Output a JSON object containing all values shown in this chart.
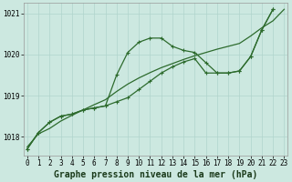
{
  "title": "Graphe pression niveau de la mer (hPa)",
  "hours": [
    0,
    1,
    2,
    3,
    4,
    5,
    6,
    7,
    8,
    9,
    10,
    11,
    12,
    13,
    14,
    15,
    16,
    17,
    18,
    19,
    20,
    21,
    22,
    23
  ],
  "curve1": [
    1017.7,
    1018.1,
    1018.35,
    1018.5,
    1018.55,
    1018.65,
    1018.7,
    1018.75,
    1019.5,
    1020.05,
    1020.3,
    1020.4,
    1020.4,
    1020.2,
    1020.1,
    1020.05,
    1019.8,
    1019.55,
    1019.55,
    1019.6,
    1019.95,
    1020.6,
    1021.1,
    null
  ],
  "curve2": [
    1017.7,
    1018.1,
    1018.35,
    1018.5,
    1018.55,
    1018.65,
    1018.7,
    1018.75,
    1018.85,
    1018.95,
    1019.15,
    1019.35,
    1019.55,
    1019.7,
    1019.82,
    1019.9,
    1019.55,
    1019.55,
    1019.55,
    1019.6,
    1019.95,
    1020.6,
    1021.1,
    null
  ],
  "trend": [
    1017.75,
    1018.07,
    1018.2,
    1018.38,
    1018.52,
    1018.65,
    1018.78,
    1018.9,
    1019.1,
    1019.28,
    1019.43,
    1019.56,
    1019.68,
    1019.78,
    1019.88,
    1019.97,
    1020.05,
    1020.13,
    1020.2,
    1020.27,
    1020.45,
    1020.65,
    1020.82,
    1021.1
  ],
  "ylim": [
    1017.55,
    1021.25
  ],
  "yticks": [
    1018,
    1019,
    1020,
    1021
  ],
  "xlim": [
    -0.3,
    23.3
  ],
  "bg_color": "#cce8e0",
  "grid_color": "#b0d4cc",
  "line_color": "#2d6b2d",
  "marker": "+",
  "marker_size": 3.5,
  "marker_lw": 0.8,
  "line_width": 0.9,
  "title_fontsize": 7,
  "tick_fontsize": 5.5
}
